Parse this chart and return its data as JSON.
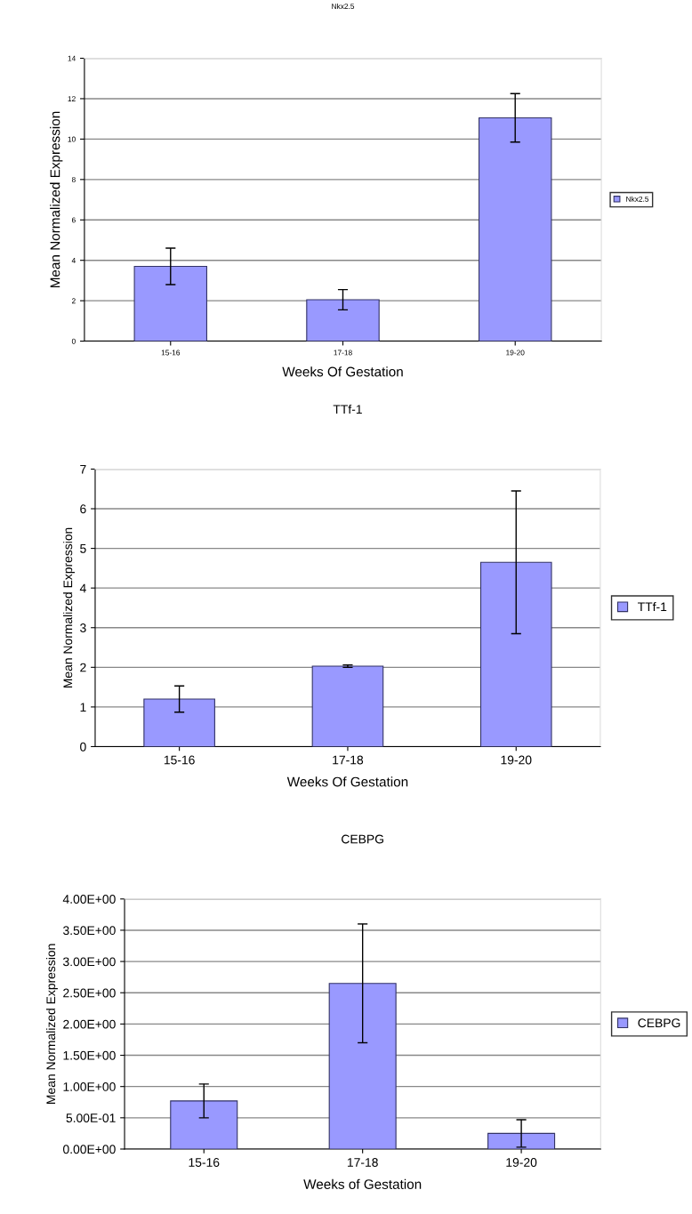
{
  "chart_data": [
    {
      "type": "bar",
      "title": "Nkx2.5",
      "xlabel": "Weeks Of Gestation",
      "ylabel": "Mean Normalized Expression",
      "categories": [
        "15-16",
        "17-18",
        "19-20"
      ],
      "series": [
        {
          "name": "Nkx2.5",
          "color": "#9999ff",
          "values": [
            3.7,
            2.05,
            11.05
          ],
          "errors": [
            0.9,
            0.5,
            1.2
          ]
        }
      ],
      "ylim": [
        0,
        14
      ],
      "yticks": [
        0,
        2,
        4,
        6,
        8,
        10,
        12,
        14
      ],
      "grid": "y",
      "legend": "right"
    },
    {
      "type": "bar",
      "title": "TTf-1",
      "xlabel": "Weeks Of Gestation",
      "ylabel": "Mean Normalized Expression",
      "categories": [
        "15-16",
        "17-18",
        "19-20"
      ],
      "series": [
        {
          "name": "TTf-1",
          "color": "#9999ff",
          "values": [
            1.2,
            2.03,
            4.65
          ],
          "errors": [
            0.33,
            0.03,
            1.8
          ]
        }
      ],
      "ylim": [
        0,
        7
      ],
      "yticks": [
        0,
        1,
        2,
        3,
        4,
        5,
        6,
        7
      ],
      "grid": "y",
      "legend": "right"
    },
    {
      "type": "bar",
      "title": "CEBPG",
      "xlabel": "Weeks of Gestation",
      "ylabel": "Mean Normalized Expression",
      "categories": [
        "15-16",
        "17-18",
        "19-20"
      ],
      "series": [
        {
          "name": "CEBPG",
          "color": "#9999ff",
          "values": [
            0.77,
            2.65,
            0.25
          ],
          "errors": [
            0.27,
            0.95,
            0.22
          ]
        }
      ],
      "ylim": [
        0,
        4
      ],
      "yticks": [
        {
          "value": 0,
          "label": "0.00E+00"
        },
        {
          "value": 0.5,
          "label": "5.00E-01"
        },
        {
          "value": 1,
          "label": "1.00E+00"
        },
        {
          "value": 1.5,
          "label": "1.50E+00"
        },
        {
          "value": 2,
          "label": "2.00E+00"
        },
        {
          "value": 2.5,
          "label": "2.50E+00"
        },
        {
          "value": 3,
          "label": "3.00E+00"
        },
        {
          "value": 3.5,
          "label": "3.50E+00"
        },
        {
          "value": 4,
          "label": "4.00E+00"
        }
      ],
      "grid": "y",
      "legend": "right"
    }
  ]
}
